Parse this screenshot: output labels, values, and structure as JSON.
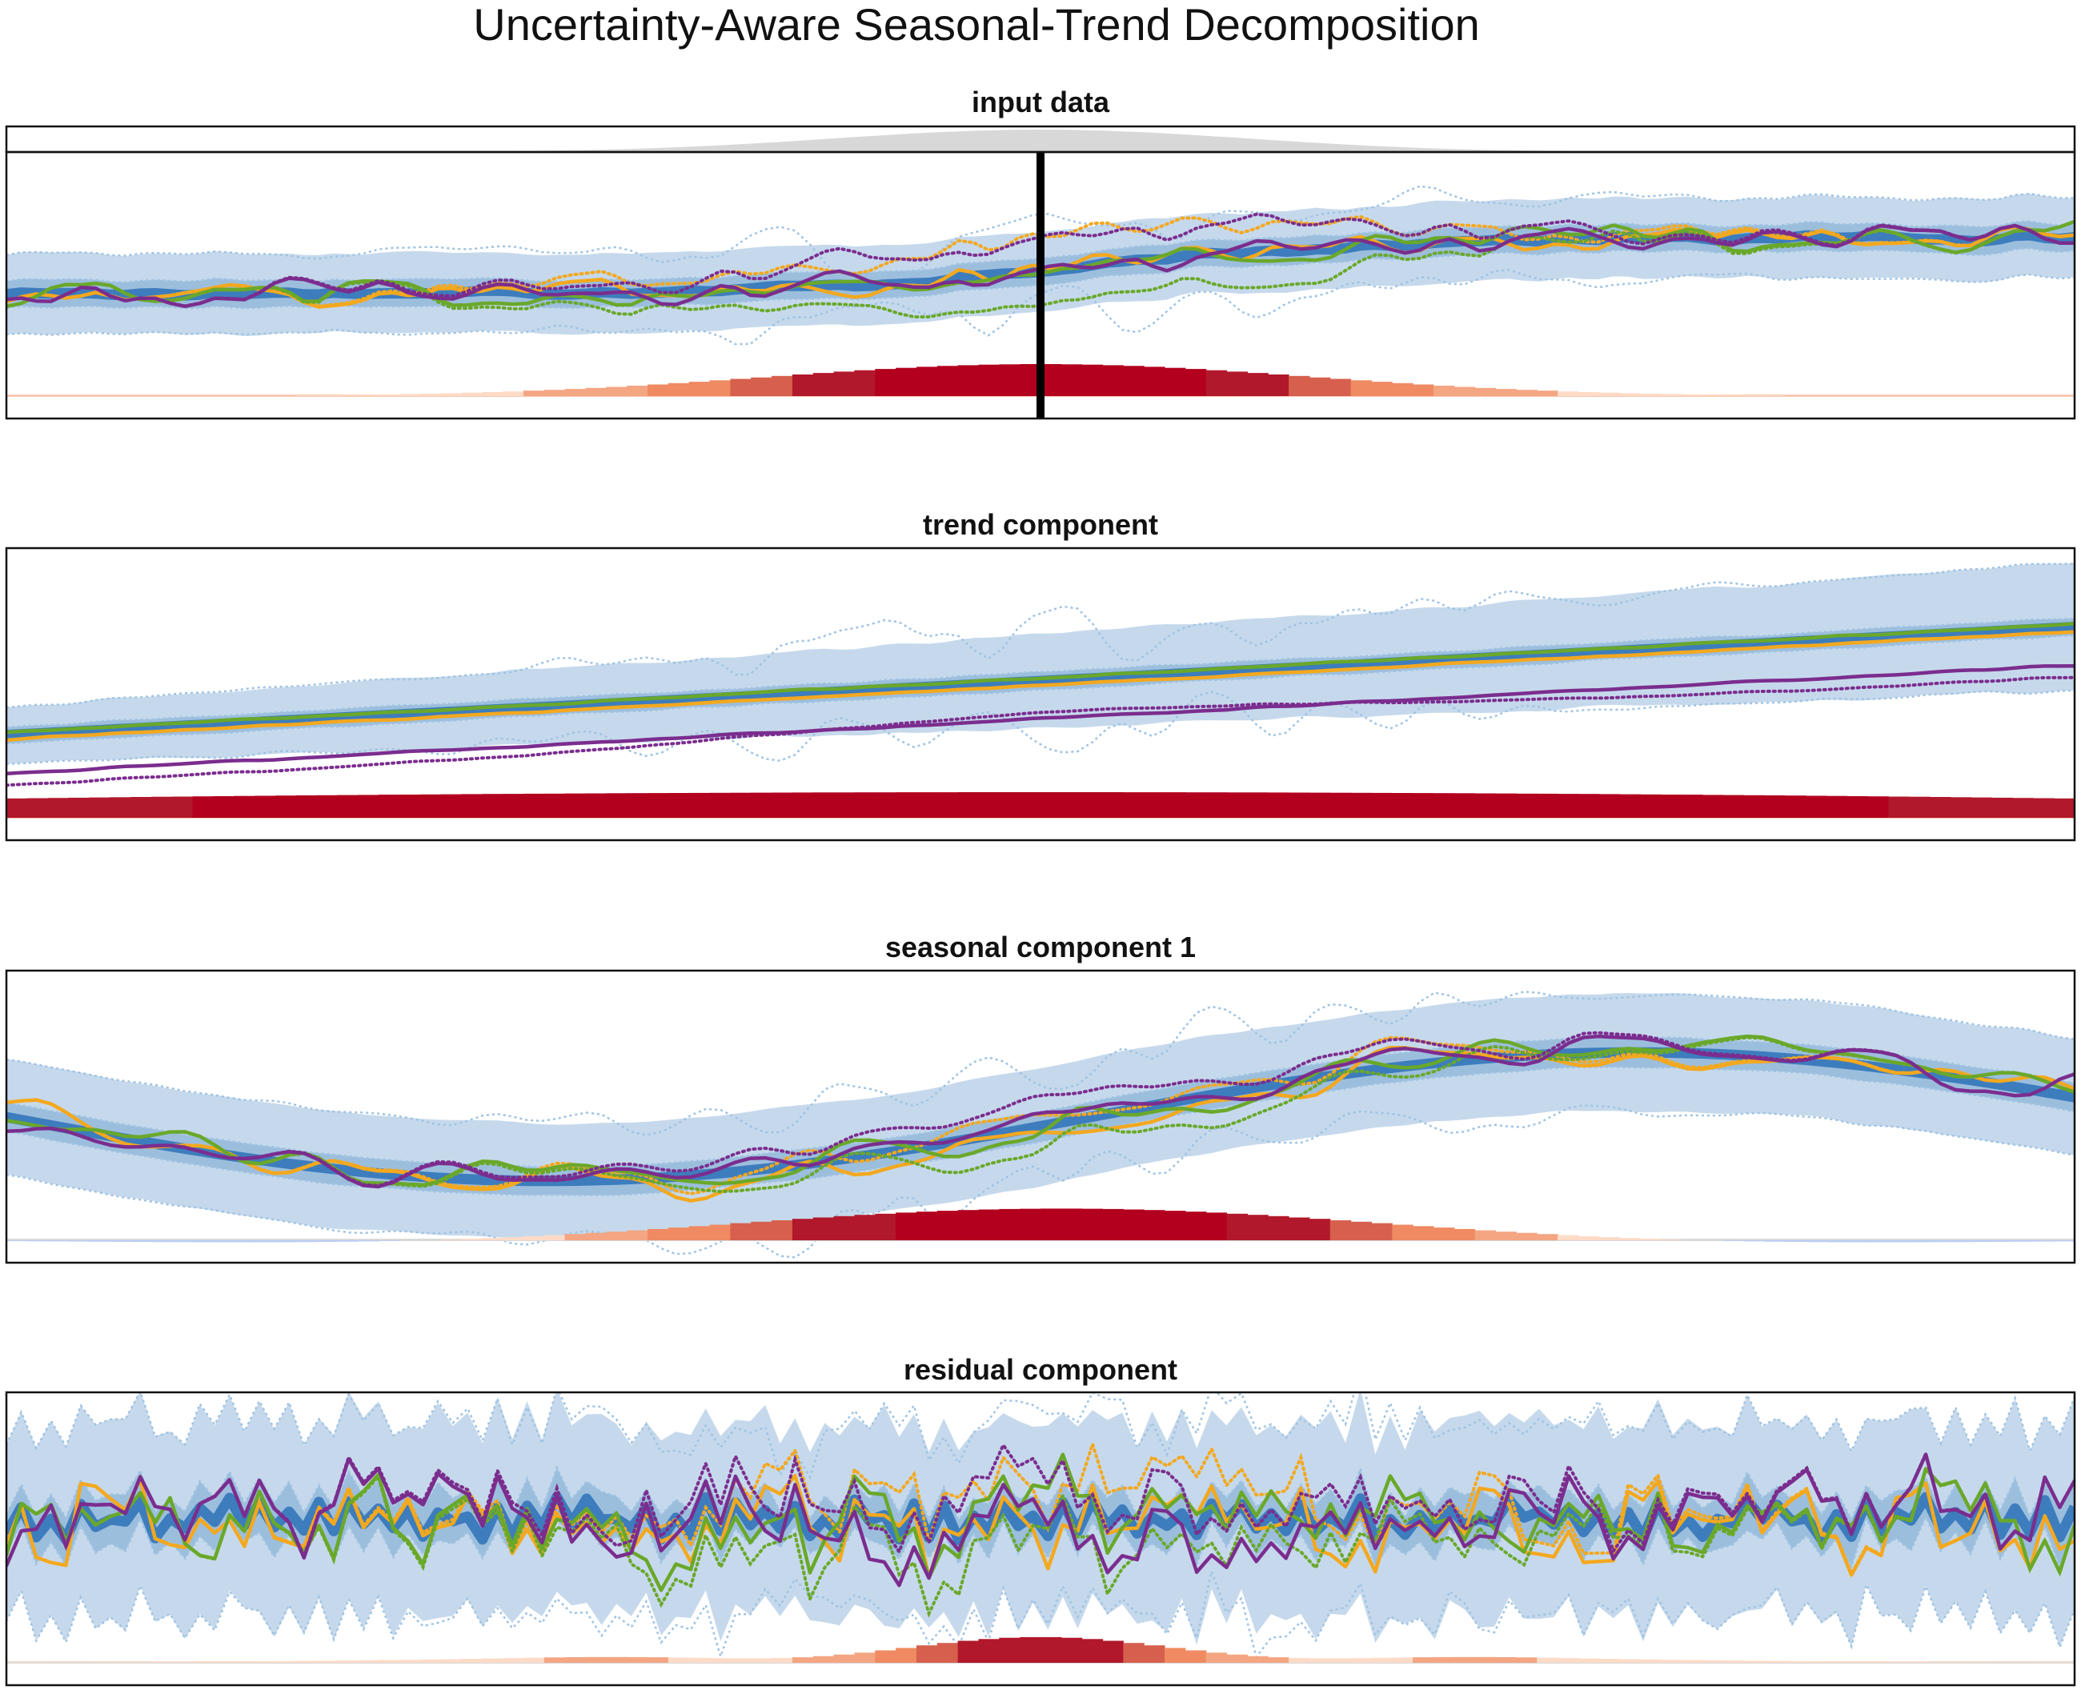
{
  "title": "Uncertainty-Aware Seasonal-Trend Decomposition",
  "colors": {
    "mean": "#3d7dbd",
    "band_outer": "#c6d9ec",
    "band_inner": "#9cbedd",
    "band_dotted": "#9fc3e2",
    "sample_orange": "#f3a81f",
    "sample_green": "#6aa82a",
    "sample_purple": "#7b2d8e",
    "marker": "#000000",
    "sensitivity_positive": "#b2001e",
    "sensitivity_negative": "#6f96ea",
    "neutral": "#d8d8d8"
  },
  "chart_data": [
    {
      "type": "line",
      "title": "input data",
      "xlabel": "",
      "ylabel": "",
      "x_range": [
        0,
        100
      ],
      "y_range": [
        0,
        1
      ],
      "grid": false,
      "legend": "none",
      "marker_x": 50,
      "weight_strip": "gaussian",
      "sensitivity": {
        "center": 50,
        "width": 13,
        "direction": "positive"
      },
      "mean": {
        "start": 0.47,
        "end": 0.68,
        "step_center": 53,
        "step_width": 7
      },
      "band_outer_halfwidth": 0.15,
      "band_inner_halfwidth": 0.05,
      "samples": [
        {
          "color": "orange",
          "perturbation": "dotted"
        },
        {
          "color": "green",
          "perturbation": "dotted"
        },
        {
          "color": "purple",
          "perturbation": "dotted"
        }
      ]
    },
    {
      "type": "line",
      "title": "trend component",
      "xlabel": "",
      "ylabel": "",
      "x_range": [
        0,
        100
      ],
      "y_range": [
        0,
        1
      ],
      "grid": false,
      "legend": "none",
      "sensitivity": {
        "center": 50,
        "width": 60,
        "direction": "positive"
      },
      "mean": {
        "start": 0.36,
        "end": 0.73
      },
      "band_outer_halfwidth": [
        0.1,
        0.22
      ],
      "band_inner_halfwidth": 0.03,
      "samples": [
        {
          "color": "orange",
          "offset": -0.015
        },
        {
          "color": "green",
          "offset": 0.01
        },
        {
          "color": "purple",
          "offset": -0.13,
          "perturbation": "dotted"
        }
      ]
    },
    {
      "type": "line",
      "title": "seasonal component 1",
      "xlabel": "",
      "ylabel": "",
      "x_range": [
        0,
        100
      ],
      "y_range": [
        0,
        1
      ],
      "grid": false,
      "legend": "none",
      "sensitivity": {
        "center": 51,
        "width": 15,
        "direction": "positive"
      },
      "mean": {
        "shape": "sine",
        "amplitude": 0.22
      },
      "band_outer_halfwidth": 0.2,
      "band_inner_halfwidth": 0.05,
      "samples": [
        {
          "color": "orange",
          "perturbation": "dotted"
        },
        {
          "color": "green",
          "perturbation": "dotted"
        },
        {
          "color": "purple",
          "perturbation": "dotted"
        }
      ]
    },
    {
      "type": "line",
      "title": "residual component",
      "xlabel": "",
      "ylabel": "",
      "x_range": [
        0,
        100
      ],
      "y_range": [
        0,
        1
      ],
      "grid": false,
      "legend": "none",
      "sensitivity": {
        "center": 50,
        "width": 12,
        "direction": "mixed",
        "negative_lobes": [
          40,
          60
        ]
      },
      "mean": {
        "shape": "oscillating",
        "level": 0.57
      },
      "band_outer_halfwidth": 0.33,
      "band_inner_halfwidth": 0.08,
      "samples": [
        {
          "color": "orange",
          "perturbation": "dotted"
        },
        {
          "color": "green",
          "perturbation": "dotted"
        },
        {
          "color": "purple",
          "perturbation": "dotted"
        }
      ]
    }
  ]
}
